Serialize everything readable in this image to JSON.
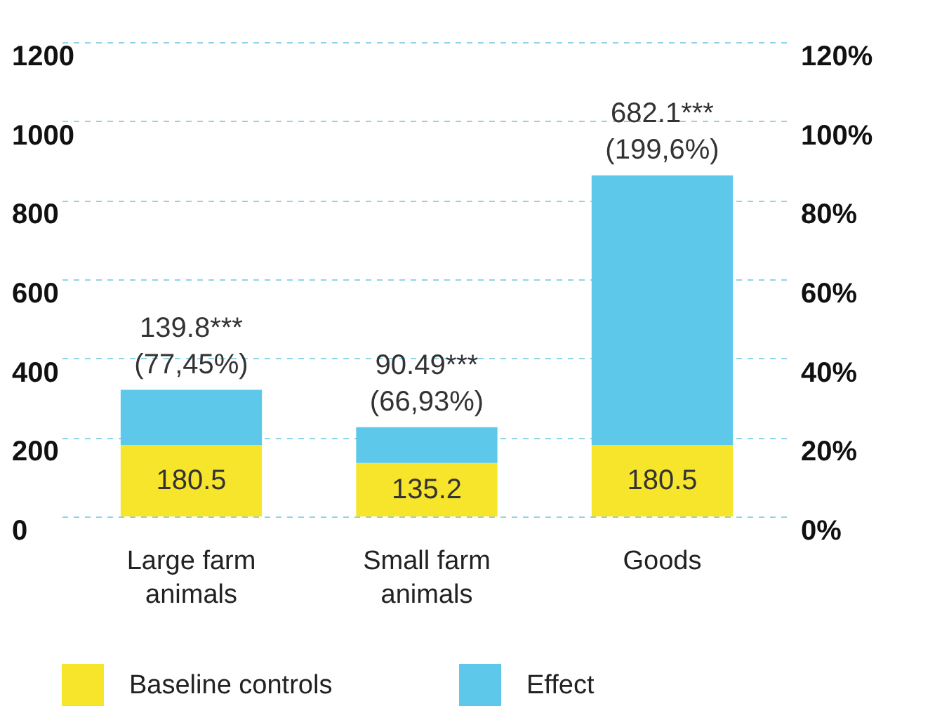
{
  "chart_data": {
    "type": "bar",
    "stacked": true,
    "categories": [
      "Large farm animals",
      "Small farm animals",
      "Goods"
    ],
    "series": [
      {
        "name": "Baseline controls",
        "color": "#f7e52b",
        "values": [
          180.5,
          135.2,
          180.5
        ],
        "value_labels": [
          "180.5",
          "135.2",
          "180.5"
        ]
      },
      {
        "name": "Effect",
        "color": "#5ec8ea",
        "values": [
          139.8,
          90.49,
          682.1
        ],
        "value_labels": [
          "139.8***\n(77,45%)",
          "90.49***\n(66,93%)",
          "682.1***\n(199,6%)"
        ]
      }
    ],
    "ylim": [
      0,
      1200
    ],
    "yticks": [
      0,
      200,
      400,
      600,
      800,
      1000,
      1200
    ],
    "y2lim": [
      0,
      120
    ],
    "y2ticks": [
      {
        "value": 0,
        "label": "0%"
      },
      {
        "value": 20,
        "label": "20%"
      },
      {
        "value": 40,
        "label": "40%"
      },
      {
        "value": 60,
        "label": "60%"
      },
      {
        "value": 80,
        "label": "80%"
      },
      {
        "value": 100,
        "label": "100%"
      },
      {
        "value": 120,
        "label": "120%"
      }
    ],
    "grid": "y",
    "legend": "bottom"
  }
}
